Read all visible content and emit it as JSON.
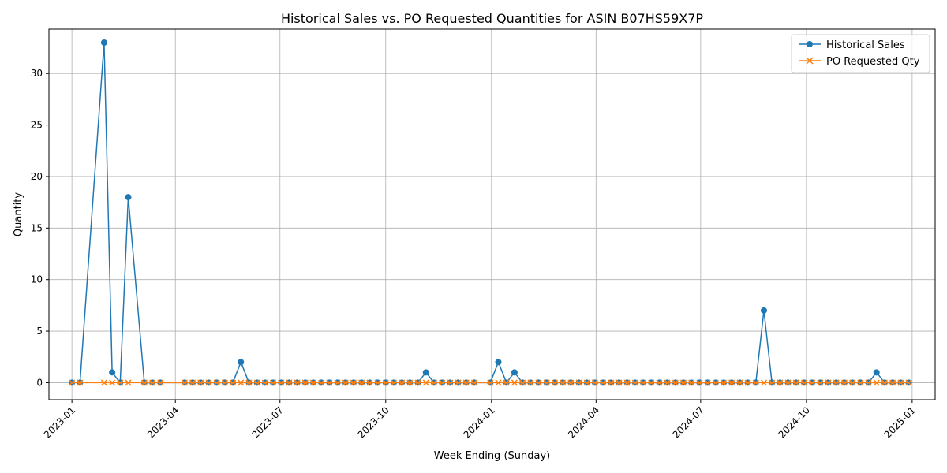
{
  "chart_data": {
    "type": "line",
    "title": "Historical Sales vs. PO Requested Quantities for ASIN B07HS59X7P",
    "xlabel": "Week Ending (Sunday)",
    "ylabel": "Quantity",
    "xlim": [
      "2022-12-12",
      "2025-01-21"
    ],
    "ylim": [
      -1.65,
      34.3
    ],
    "x_ticks": [
      "2023-01",
      "2023-04",
      "2023-07",
      "2023-10",
      "2024-01",
      "2024-04",
      "2024-07",
      "2024-10",
      "2025-01"
    ],
    "y_ticks": [
      0,
      5,
      10,
      15,
      20,
      25,
      30
    ],
    "grid": true,
    "legend_position": "top-right",
    "x": [
      "2023-01-01",
      "2023-01-08",
      "2023-01-29",
      "2023-02-05",
      "2023-02-12",
      "2023-02-19",
      "2023-03-05",
      "2023-03-12",
      "2023-03-19",
      "2023-04-09",
      "2023-04-16",
      "2023-04-23",
      "2023-04-30",
      "2023-05-07",
      "2023-05-14",
      "2023-05-21",
      "2023-05-28",
      "2023-06-04",
      "2023-06-11",
      "2023-06-18",
      "2023-06-25",
      "2023-07-02",
      "2023-07-09",
      "2023-07-16",
      "2023-07-23",
      "2023-07-30",
      "2023-08-06",
      "2023-08-13",
      "2023-08-20",
      "2023-08-27",
      "2023-09-03",
      "2023-09-10",
      "2023-09-17",
      "2023-09-24",
      "2023-10-01",
      "2023-10-08",
      "2023-10-15",
      "2023-10-22",
      "2023-10-29",
      "2023-11-05",
      "2023-11-12",
      "2023-11-19",
      "2023-11-26",
      "2023-12-03",
      "2023-12-10",
      "2023-12-17",
      "2023-12-31",
      "2024-01-07",
      "2024-01-14",
      "2024-01-21",
      "2024-01-28",
      "2024-02-04",
      "2024-02-11",
      "2024-02-18",
      "2024-02-25",
      "2024-03-03",
      "2024-03-10",
      "2024-03-17",
      "2024-03-24",
      "2024-03-31",
      "2024-04-07",
      "2024-04-14",
      "2024-04-21",
      "2024-04-28",
      "2024-05-05",
      "2024-05-12",
      "2024-05-19",
      "2024-05-26",
      "2024-06-02",
      "2024-06-09",
      "2024-06-16",
      "2024-06-23",
      "2024-06-30",
      "2024-07-07",
      "2024-07-14",
      "2024-07-21",
      "2024-07-28",
      "2024-08-04",
      "2024-08-11",
      "2024-08-18",
      "2024-08-25",
      "2024-09-01",
      "2024-09-08",
      "2024-09-15",
      "2024-09-22",
      "2024-09-29",
      "2024-10-06",
      "2024-10-13",
      "2024-10-20",
      "2024-10-27",
      "2024-11-03",
      "2024-11-10",
      "2024-11-17",
      "2024-11-24",
      "2024-12-01",
      "2024-12-08",
      "2024-12-15",
      "2024-12-22",
      "2024-12-29"
    ],
    "series": [
      {
        "name": "Historical Sales",
        "color": "#1f77b4",
        "marker": "circle",
        "values": [
          0,
          0,
          33,
          1,
          0,
          18,
          0,
          0,
          0,
          0,
          0,
          0,
          0,
          0,
          0,
          0,
          2,
          0,
          0,
          0,
          0,
          0,
          0,
          0,
          0,
          0,
          0,
          0,
          0,
          0,
          0,
          0,
          0,
          0,
          0,
          0,
          0,
          0,
          0,
          1,
          0,
          0,
          0,
          0,
          0,
          0,
          0,
          2,
          0,
          1,
          0,
          0,
          0,
          0,
          0,
          0,
          0,
          0,
          0,
          0,
          0,
          0,
          0,
          0,
          0,
          0,
          0,
          0,
          0,
          0,
          0,
          0,
          0,
          0,
          0,
          0,
          0,
          0,
          0,
          0,
          7,
          0,
          0,
          0,
          0,
          0,
          0,
          0,
          0,
          0,
          0,
          0,
          0,
          0,
          1,
          0,
          0,
          0,
          0
        ]
      },
      {
        "name": "PO Requested Qty",
        "color": "#ff7f0e",
        "marker": "x",
        "values": [
          0,
          0,
          0,
          0,
          0,
          0,
          0,
          0,
          0,
          0,
          0,
          0,
          0,
          0,
          0,
          0,
          0,
          0,
          0,
          0,
          0,
          0,
          0,
          0,
          0,
          0,
          0,
          0,
          0,
          0,
          0,
          0,
          0,
          0,
          0,
          0,
          0,
          0,
          0,
          0,
          0,
          0,
          0,
          0,
          0,
          0,
          0,
          0,
          0,
          0,
          0,
          0,
          0,
          0,
          0,
          0,
          0,
          0,
          0,
          0,
          0,
          0,
          0,
          0,
          0,
          0,
          0,
          0,
          0,
          0,
          0,
          0,
          0,
          0,
          0,
          0,
          0,
          0,
          0,
          0,
          0,
          0,
          0,
          0,
          0,
          0,
          0,
          0,
          0,
          0,
          0,
          0,
          0,
          0,
          0,
          0,
          0,
          0,
          0
        ]
      }
    ]
  }
}
